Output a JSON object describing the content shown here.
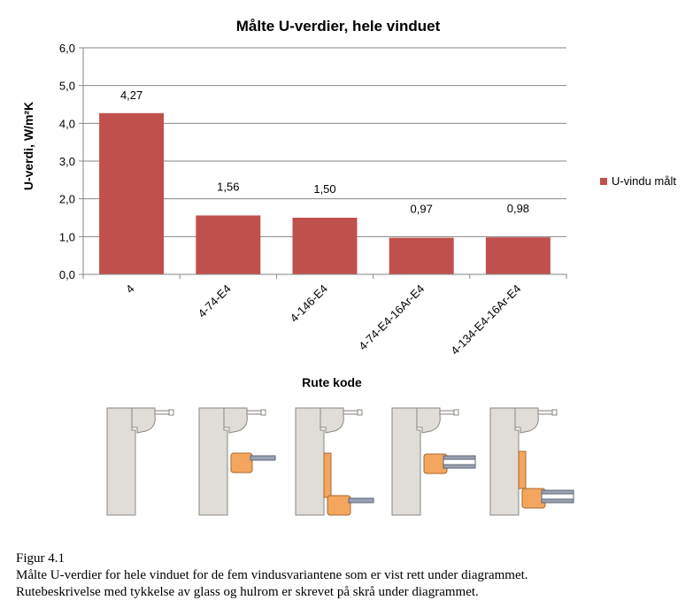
{
  "chart_data": {
    "type": "bar",
    "title": "Målte U-verdier, hele vinduet",
    "xlabel": "Rute kode",
    "ylabel": "U-verdi, W/m²K",
    "categories": [
      "4",
      "4-74-E4",
      "4-146-E4",
      "4-74-E4-16Ar-E4",
      "4-134-E4-16Ar-E4"
    ],
    "series": [
      {
        "name": "U-vindu målt",
        "values": [
          4.27,
          1.56,
          1.5,
          0.97,
          0.98
        ],
        "labels": [
          "4,27",
          "1,56",
          "1,50",
          "0,97",
          "0,98"
        ],
        "color": "#c0504d"
      }
    ],
    "ylim": [
      0,
      6
    ],
    "yticks": [
      "0,0",
      "1,0",
      "2,0",
      "3,0",
      "4,0",
      "5,0",
      "6,0"
    ],
    "grid": true,
    "legend_position": "right"
  },
  "caption": {
    "label": "Figur 4.1",
    "line1": "Målte U-verdier for hele vinduet for de fem vindusvariantene som er vist rett under diagrammet.",
    "line2": "Rutebeskrivelse med tykkelse av glass og hulrom er skrevet på skrå under diagrammet."
  },
  "colors": {
    "frame": "#e0ddd8",
    "frame_edge": "#8a8782",
    "insulation": "#f4a65f",
    "glass": "#9aa3b3"
  }
}
